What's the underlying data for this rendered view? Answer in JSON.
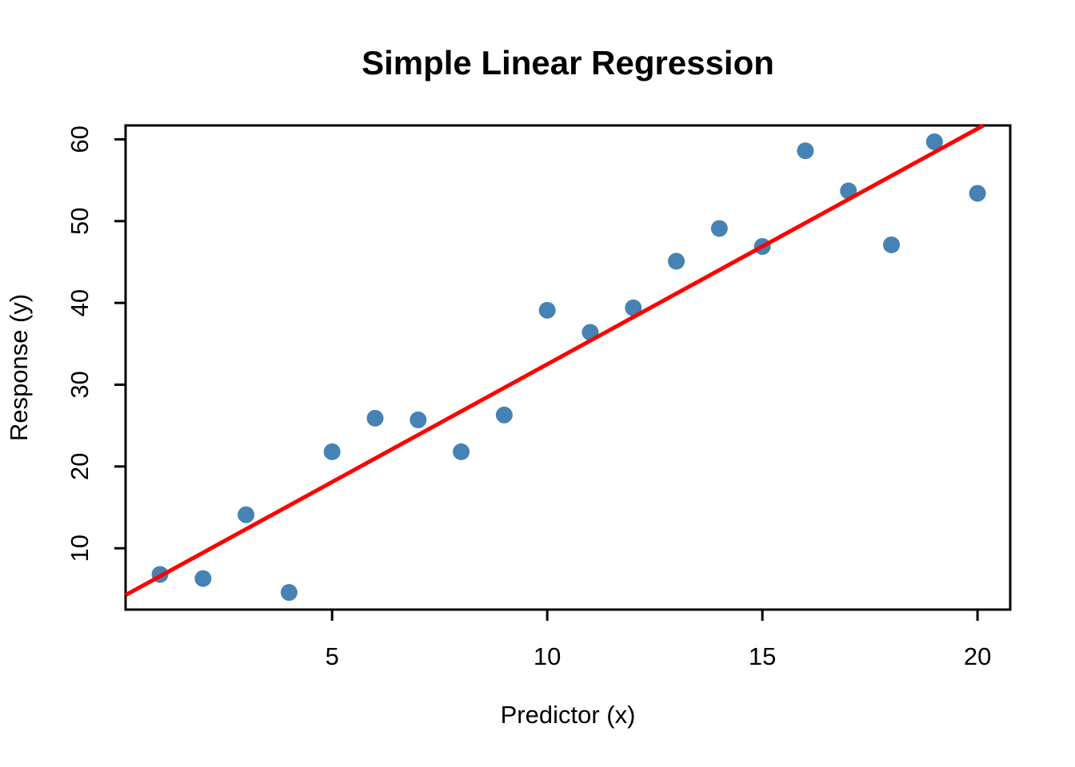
{
  "page": {
    "background": "#ffffff"
  },
  "chart_data": {
    "type": "scatter",
    "title": "Simple Linear Regression",
    "xlabel": "Predictor (x)",
    "ylabel": "Response (y)",
    "xlim": [
      0.2,
      20.76
    ],
    "ylim": [
      2.5,
      61.7
    ],
    "xticks": [
      5,
      10,
      15,
      20
    ],
    "yticks": [
      10,
      20,
      30,
      40,
      50,
      60
    ],
    "grid": "off",
    "legend": "none",
    "points": {
      "x": [
        1,
        2,
        3,
        4,
        5,
        6,
        7,
        8,
        9,
        10,
        11,
        12,
        13,
        14,
        15,
        16,
        17,
        18,
        19,
        20
      ],
      "y": [
        6.8,
        6.3,
        14.1,
        4.6,
        21.8,
        25.9,
        25.7,
        21.8,
        26.3,
        39.1,
        36.4,
        39.4,
        45.1,
        49.1,
        46.9,
        58.6,
        53.7,
        47.1,
        59.7,
        53.4
      ]
    },
    "point_color": "#4682B4",
    "regression_line": {
      "intercept": 3.7,
      "slope": 2.88,
      "color": "#FF0000"
    },
    "axis_color": "#000000"
  }
}
